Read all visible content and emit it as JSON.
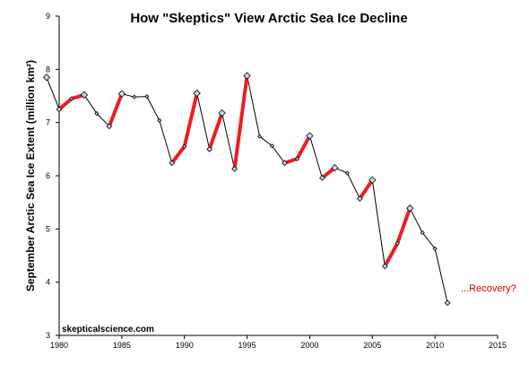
{
  "chart_data": {
    "type": "line",
    "title": "How \"Skeptics\" View Arctic Sea Ice Decline",
    "xlabel": "",
    "ylabel": "September Arctic Sea Ice Extent (million km²)",
    "xlim": [
      1980,
      2015
    ],
    "ylim": [
      3,
      9
    ],
    "x_ticks": [
      1980,
      1985,
      1990,
      1995,
      2000,
      2005,
      2010,
      2015
    ],
    "y_ticks": [
      3,
      4,
      5,
      6,
      7,
      8,
      9
    ],
    "grid": false,
    "series": [
      {
        "color": "#000000",
        "points": [
          [
            1979,
            7.85
          ],
          [
            1980,
            7.25
          ],
          [
            1981,
            7.45
          ],
          [
            1982,
            7.52
          ],
          [
            1983,
            7.17
          ],
          [
            1984,
            6.93
          ],
          [
            1985,
            7.54
          ],
          [
            1986,
            7.48
          ],
          [
            1987,
            7.49
          ],
          [
            1988,
            7.04
          ],
          [
            1989,
            6.24
          ],
          [
            1990,
            6.55
          ],
          [
            1991,
            7.55
          ],
          [
            1992,
            6.5
          ],
          [
            1993,
            7.18
          ],
          [
            1994,
            6.13
          ],
          [
            1995,
            7.88
          ],
          [
            1996,
            6.74
          ],
          [
            1997,
            6.56
          ],
          [
            1998,
            6.24
          ],
          [
            1999,
            6.32
          ],
          [
            2000,
            6.75
          ],
          [
            2001,
            5.96
          ],
          [
            2002,
            6.15
          ],
          [
            2003,
            6.05
          ],
          [
            2004,
            5.57
          ],
          [
            2005,
            5.92
          ],
          [
            2006,
            4.3
          ],
          [
            2007,
            4.73
          ],
          [
            2008,
            5.39
          ],
          [
            2009,
            4.93
          ],
          [
            2010,
            4.63
          ],
          [
            2011,
            3.61
          ]
        ]
      }
    ],
    "highlighted_segments": [
      [
        1980,
        1982
      ],
      [
        1984,
        1985
      ],
      [
        1989,
        1991
      ],
      [
        1992,
        1993
      ],
      [
        1994,
        1995
      ],
      [
        1998,
        2000
      ],
      [
        2001,
        2002
      ],
      [
        2004,
        2005
      ],
      [
        2006,
        2008
      ]
    ],
    "highlight_color": "#ee1c24",
    "marker_color": "#c6d9f1",
    "annotation": {
      "text": "...Recovery?",
      "color": "#cc0000"
    },
    "credit": "skepticalscience.com"
  }
}
